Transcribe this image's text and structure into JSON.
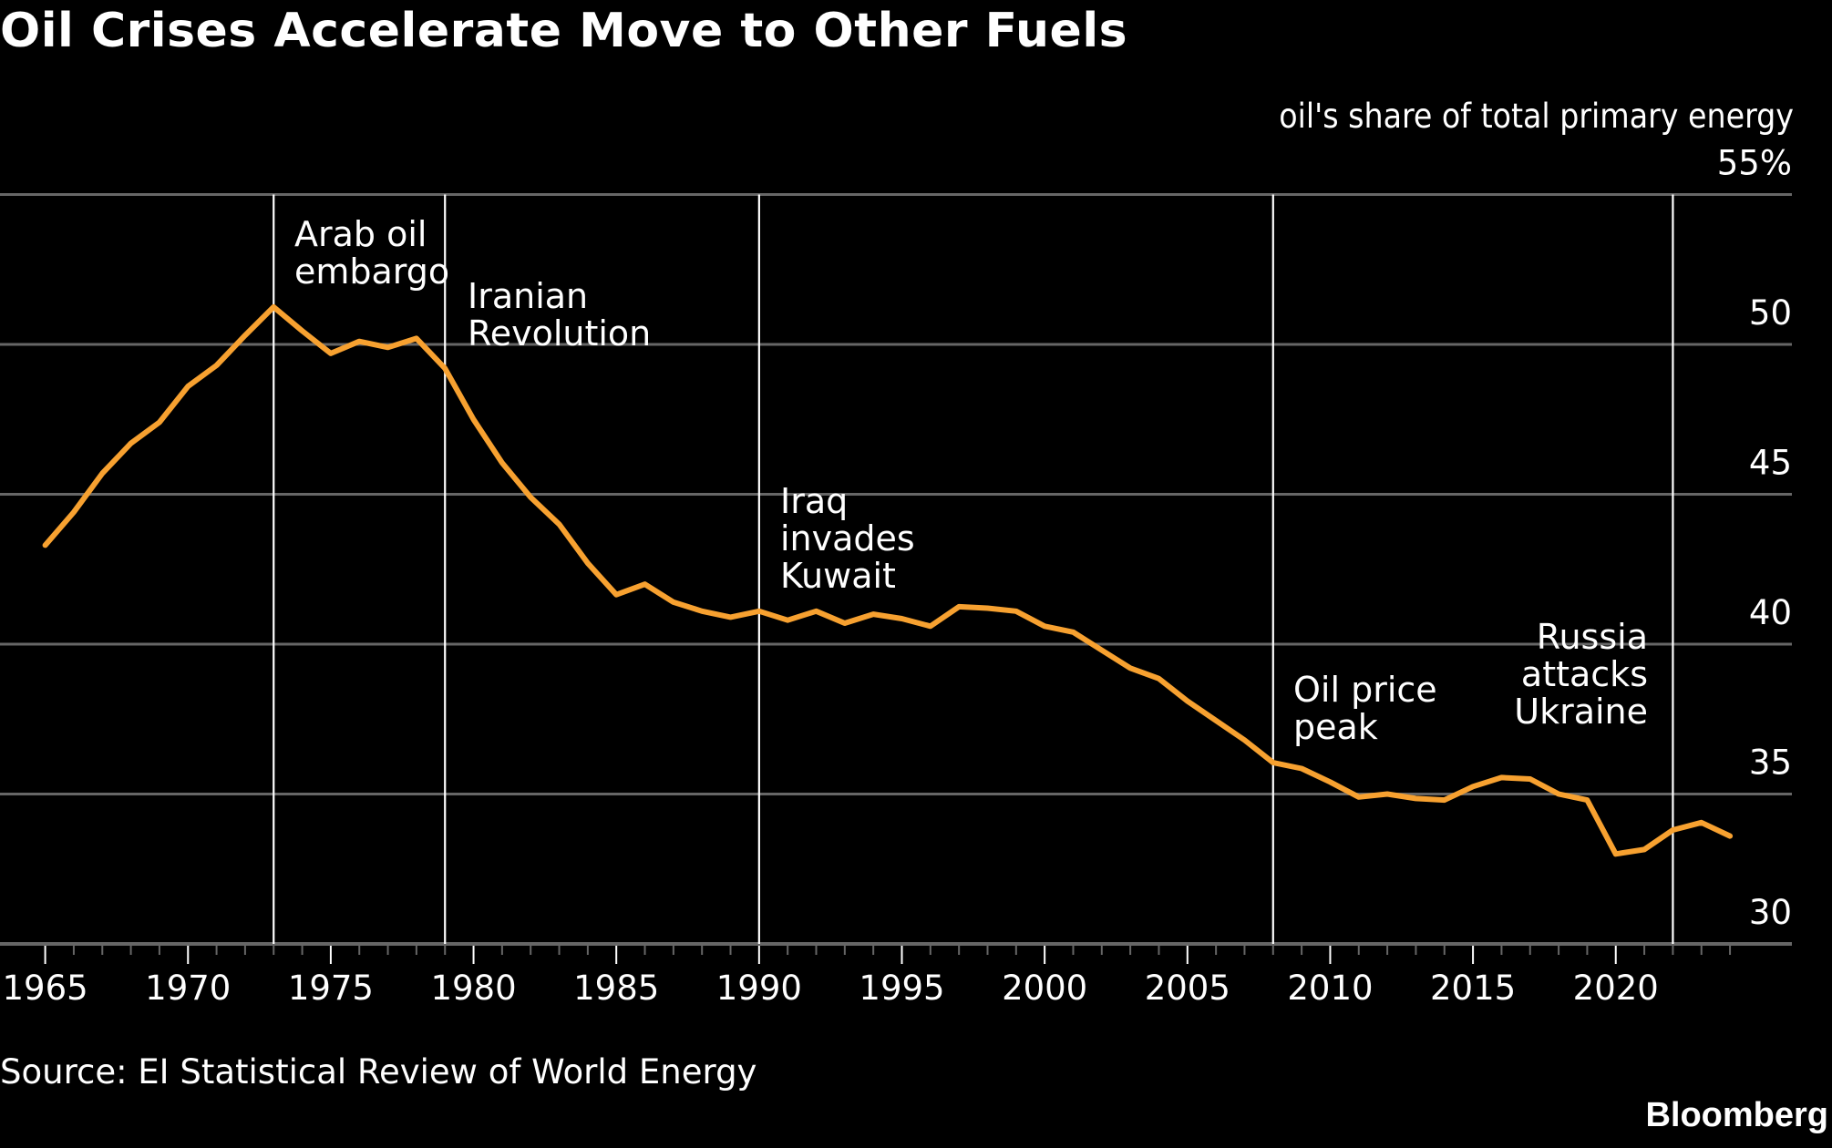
{
  "header": {
    "title": "Oil Crises Accelerate Move to Other Fuels"
  },
  "footer": {
    "source": "Source: EI Statistical Review of World Energy",
    "brand": "Bloomberg"
  },
  "colors": {
    "background": "#000000",
    "line": "#F7A130",
    "grid": "#666666",
    "event_line": "#FFFFFF",
    "text": "#FFFFFF"
  },
  "chart_data": {
    "type": "line",
    "title": "Oil Crises Accelerate Move to Other Fuels",
    "ylabel": "oil's share of total primary energy",
    "y_unit_suffix": "%",
    "ylim": [
      30,
      55
    ],
    "yticks": [
      30,
      35,
      40,
      45,
      50,
      55
    ],
    "ytick_labels": [
      "30",
      "35",
      "40",
      "45",
      "50",
      "55%"
    ],
    "y_axis_side": "right",
    "xlim": [
      1965,
      2024
    ],
    "xticks_major": [
      1965,
      1970,
      1975,
      1980,
      1985,
      1990,
      1995,
      2000,
      2005,
      2010,
      2015,
      2020
    ],
    "xtick_labels": [
      "1965",
      "1970",
      "1975",
      "1980",
      "1985",
      "1990",
      "1995",
      "2000",
      "2005",
      "2010",
      "2015",
      "2020"
    ],
    "grid": true,
    "series": [
      {
        "name": "Oil share of total primary energy (%)",
        "x": [
          1965,
          1966,
          1967,
          1968,
          1969,
          1970,
          1971,
          1972,
          1973,
          1974,
          1975,
          1976,
          1977,
          1978,
          1979,
          1980,
          1981,
          1982,
          1983,
          1984,
          1985,
          1986,
          1987,
          1988,
          1989,
          1990,
          1991,
          1992,
          1993,
          1994,
          1995,
          1996,
          1997,
          1998,
          1999,
          2000,
          2001,
          2002,
          2003,
          2004,
          2005,
          2006,
          2007,
          2008,
          2009,
          2010,
          2011,
          2012,
          2013,
          2014,
          2015,
          2016,
          2017,
          2018,
          2019,
          2020,
          2021,
          2022,
          2023,
          2024
        ],
        "values": [
          43.3,
          44.4,
          45.7,
          46.7,
          47.4,
          48.6,
          49.3,
          50.3,
          51.25,
          50.45,
          49.7,
          50.1,
          49.9,
          50.2,
          49.2,
          47.5,
          46.05,
          44.9,
          44.0,
          42.7,
          41.65,
          42.0,
          41.4,
          41.1,
          40.9,
          41.1,
          40.8,
          41.1,
          40.7,
          41.0,
          40.85,
          40.6,
          41.25,
          41.2,
          41.1,
          40.6,
          40.4,
          39.8,
          39.2,
          38.85,
          38.1,
          37.45,
          36.8,
          36.05,
          35.85,
          35.4,
          34.9,
          35.0,
          34.85,
          34.8,
          35.25,
          35.55,
          35.5,
          35.0,
          34.8,
          33.0,
          33.15,
          33.8,
          34.05,
          33.6
        ]
      }
    ],
    "annotations": [
      {
        "year": 1973,
        "lines": [
          "Arab oil",
          "embargo"
        ],
        "align": "left",
        "value_row": 0
      },
      {
        "year": 1979,
        "lines": [
          "Iranian",
          "Revolution"
        ],
        "align": "left",
        "value_row": 1
      },
      {
        "year": 1990,
        "lines": [
          "Iraq",
          "invades",
          "Kuwait"
        ],
        "align": "left",
        "value_row": 2
      },
      {
        "year": 2008,
        "lines": [
          "Oil price",
          "peak"
        ],
        "align": "left",
        "value_row": 3
      },
      {
        "year": 2022,
        "lines": [
          "Russia",
          "attacks",
          "Ukraine"
        ],
        "align": "right",
        "value_row": 4
      }
    ],
    "source": "EI Statistical Review of World Energy"
  }
}
